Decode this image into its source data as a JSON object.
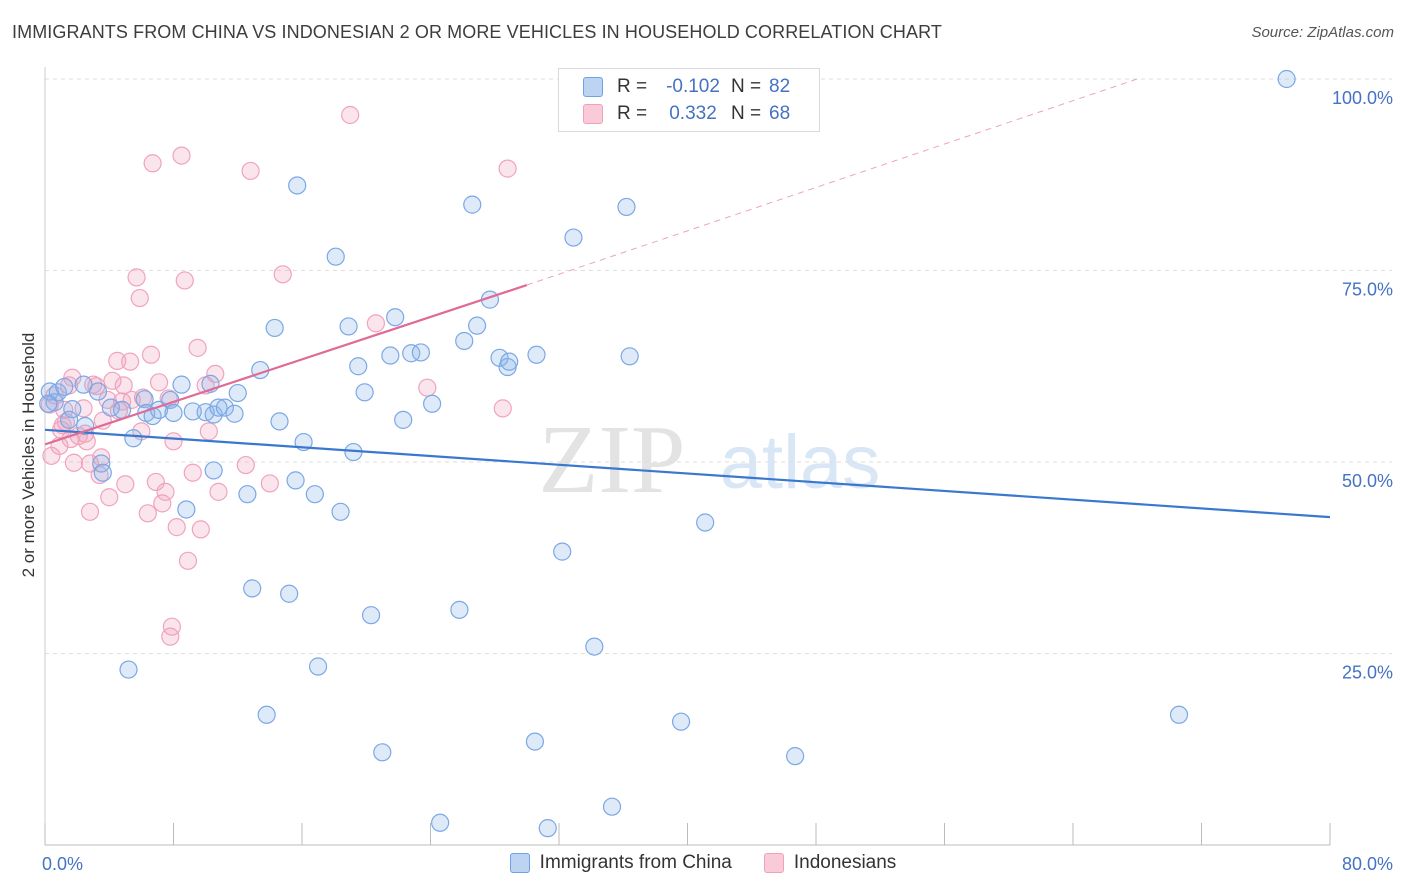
{
  "title": "IMMIGRANTS FROM CHINA VS INDONESIAN 2 OR MORE VEHICLES IN HOUSEHOLD CORRELATION CHART",
  "source": "Source: ZipAtlas.com",
  "watermark": {
    "zip": "ZIP",
    "atlas": "atlas"
  },
  "legend": {
    "rows": [
      {
        "r_label": "R =",
        "r_value": "-0.102",
        "n_label": "N =",
        "n_value": "82"
      },
      {
        "r_label": "R =",
        "r_value": "0.332",
        "n_label": "N =",
        "n_value": "68"
      }
    ]
  },
  "colors": {
    "china": "#6fa0e8",
    "china_line": "#3a78d0",
    "indonesian": "#f2a0bb",
    "indonesian_line": "#e06b96",
    "tick_text": "#4472c4"
  },
  "chart_data": {
    "type": "scatter",
    "title": "IMMIGRANTS FROM CHINA VS INDONESIAN 2 OR MORE VEHICLES IN HOUSEHOLD CORRELATION CHART",
    "xlabel": "",
    "ylabel": "2 or more Vehicles in Household",
    "xlim": [
      0,
      80
    ],
    "ylim": [
      0,
      100
    ],
    "x_tick_labels": [
      "0.0%",
      "80.0%"
    ],
    "y_ticks": [
      25,
      50,
      75,
      100
    ],
    "y_tick_labels": [
      "25.0%",
      "50.0%",
      "75.0%",
      "100.0%"
    ],
    "grid": true,
    "legend_position": "bottom",
    "series": [
      {
        "name": "Immigrants from China",
        "r": -0.102,
        "n": 82,
        "trend": {
          "x": [
            0,
            80
          ],
          "y": [
            54.2,
            42.8
          ]
        },
        "points": [
          [
            0.3,
            59.2
          ],
          [
            0.6,
            57.8
          ],
          [
            0.8,
            59.1
          ],
          [
            1.2,
            59.8
          ],
          [
            1.7,
            56.9
          ],
          [
            1.5,
            55.5
          ],
          [
            2.4,
            60.1
          ],
          [
            3.3,
            59.2
          ],
          [
            3.5,
            49.8
          ],
          [
            3.6,
            48.6
          ],
          [
            4.1,
            57.1
          ],
          [
            4.8,
            56.8
          ],
          [
            5.5,
            53.1
          ],
          [
            6.2,
            58.2
          ],
          [
            6.3,
            56.4
          ],
          [
            6.7,
            56.0
          ],
          [
            7.1,
            56.8
          ],
          [
            7.8,
            58.1
          ],
          [
            8.0,
            56.4
          ],
          [
            8.5,
            60.1
          ],
          [
            8.8,
            43.8
          ],
          [
            9.2,
            56.6
          ],
          [
            10.0,
            56.5
          ],
          [
            10.3,
            60.2
          ],
          [
            10.5,
            56.2
          ],
          [
            10.5,
            48.9
          ],
          [
            10.8,
            57.1
          ],
          [
            11.2,
            57.1
          ],
          [
            11.8,
            56.3
          ],
          [
            12.0,
            59.0
          ],
          [
            12.6,
            45.8
          ],
          [
            12.9,
            33.5
          ],
          [
            13.4,
            62.0
          ],
          [
            13.8,
            17.0
          ],
          [
            14.3,
            67.5
          ],
          [
            14.6,
            55.3
          ],
          [
            15.2,
            32.8
          ],
          [
            15.6,
            47.6
          ],
          [
            15.7,
            86.1
          ],
          [
            16.1,
            52.6
          ],
          [
            16.8,
            45.8
          ],
          [
            17.0,
            23.3
          ],
          [
            18.1,
            76.8
          ],
          [
            18.4,
            43.5
          ],
          [
            18.9,
            67.7
          ],
          [
            19.2,
            51.3
          ],
          [
            19.5,
            62.5
          ],
          [
            19.9,
            59.1
          ],
          [
            20.3,
            30.0
          ],
          [
            21.0,
            12.1
          ],
          [
            21.5,
            63.9
          ],
          [
            21.8,
            68.9
          ],
          [
            22.3,
            55.5
          ],
          [
            22.8,
            64.2
          ],
          [
            23.4,
            64.3
          ],
          [
            24.1,
            57.6
          ],
          [
            24.6,
            2.9
          ],
          [
            25.8,
            30.7
          ],
          [
            26.1,
            65.8
          ],
          [
            26.6,
            83.6
          ],
          [
            26.9,
            67.8
          ],
          [
            27.7,
            71.2
          ],
          [
            28.3,
            63.6
          ],
          [
            28.8,
            62.4
          ],
          [
            28.9,
            63.1
          ],
          [
            30.5,
            13.5
          ],
          [
            30.6,
            64.0
          ],
          [
            31.3,
            2.2
          ],
          [
            32.2,
            38.3
          ],
          [
            32.9,
            79.3
          ],
          [
            34.2,
            25.9
          ],
          [
            35.3,
            5.0
          ],
          [
            36.2,
            83.3
          ],
          [
            36.4,
            63.8
          ],
          [
            39.6,
            16.1
          ],
          [
            41.1,
            42.1
          ],
          [
            46.7,
            11.6
          ],
          [
            70.6,
            17.0
          ],
          [
            77.3,
            100.0
          ],
          [
            5.2,
            22.9
          ],
          [
            0.2,
            57.6
          ],
          [
            2.5,
            54.7
          ]
        ]
      },
      {
        "name": "Indonesians",
        "r": 0.332,
        "n": 68,
        "trend": {
          "x": [
            0,
            30.0
          ],
          "y": [
            52.3,
            73.1
          ]
        },
        "trend_extension": {
          "x": [
            30.0,
            68.0
          ],
          "y": [
            73.1,
            100.0
          ]
        },
        "points": [
          [
            0.3,
            57.5
          ],
          [
            0.4,
            50.8
          ],
          [
            0.6,
            58.7
          ],
          [
            0.9,
            52.1
          ],
          [
            1.1,
            54.8
          ],
          [
            1.2,
            56.8
          ],
          [
            1.3,
            55.2
          ],
          [
            1.5,
            60.0
          ],
          [
            1.6,
            53.0
          ],
          [
            1.7,
            61.0
          ],
          [
            1.8,
            49.9
          ],
          [
            2.1,
            53.4
          ],
          [
            2.4,
            57.0
          ],
          [
            2.5,
            53.7
          ],
          [
            2.6,
            52.7
          ],
          [
            2.8,
            49.8
          ],
          [
            3.0,
            60.1
          ],
          [
            3.2,
            59.9
          ],
          [
            3.4,
            48.3
          ],
          [
            3.5,
            50.6
          ],
          [
            3.6,
            55.4
          ],
          [
            3.9,
            58.1
          ],
          [
            4.0,
            45.4
          ],
          [
            4.2,
            60.6
          ],
          [
            4.5,
            63.2
          ],
          [
            4.6,
            56.7
          ],
          [
            4.8,
            57.9
          ],
          [
            4.9,
            60.0
          ],
          [
            5.0,
            47.1
          ],
          [
            5.3,
            63.1
          ],
          [
            5.4,
            58.1
          ],
          [
            5.7,
            74.1
          ],
          [
            5.9,
            71.4
          ],
          [
            6.0,
            54.0
          ],
          [
            6.1,
            58.4
          ],
          [
            6.4,
            43.3
          ],
          [
            6.6,
            64.0
          ],
          [
            6.7,
            89.0
          ],
          [
            6.9,
            47.4
          ],
          [
            7.1,
            60.4
          ],
          [
            7.3,
            44.6
          ],
          [
            7.5,
            46.1
          ],
          [
            7.7,
            58.3
          ],
          [
            7.8,
            27.2
          ],
          [
            7.9,
            28.5
          ],
          [
            8.0,
            52.7
          ],
          [
            8.2,
            41.5
          ],
          [
            8.5,
            90.0
          ],
          [
            8.7,
            73.7
          ],
          [
            8.9,
            37.1
          ],
          [
            9.2,
            48.6
          ],
          [
            9.5,
            64.9
          ],
          [
            9.7,
            41.2
          ],
          [
            10.0,
            60.0
          ],
          [
            10.2,
            54.0
          ],
          [
            10.6,
            61.5
          ],
          [
            10.8,
            46.1
          ],
          [
            12.5,
            49.6
          ],
          [
            12.8,
            88.0
          ],
          [
            14.0,
            47.2
          ],
          [
            14.8,
            74.5
          ],
          [
            19.0,
            95.3
          ],
          [
            20.6,
            68.1
          ],
          [
            23.8,
            59.7
          ],
          [
            28.5,
            57.0
          ],
          [
            28.8,
            88.3
          ],
          [
            2.8,
            43.5
          ],
          [
            1.0,
            54.2
          ]
        ]
      }
    ]
  }
}
